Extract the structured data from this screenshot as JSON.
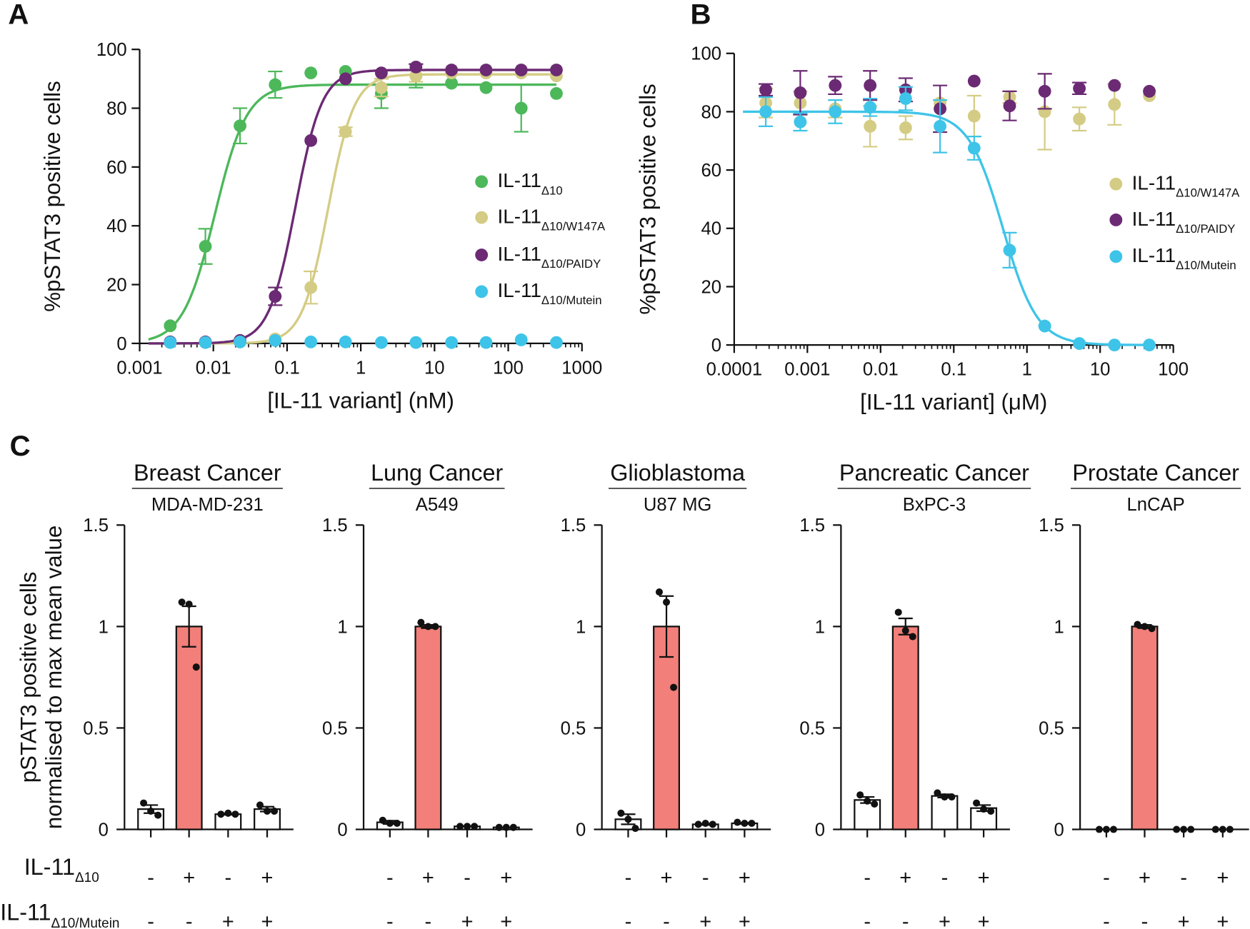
{
  "chart_data": [
    {
      "panel_label": "A",
      "type": "scatter",
      "xscale": "log",
      "xlabel": "[IL-11 variant] (nM)",
      "ylabel": "%pSTAT3 positive cells",
      "xlim": [
        0.001,
        1000
      ],
      "ylim": [
        0,
        100
      ],
      "xticks": [
        "0.001",
        "0.01",
        "0.1",
        "1",
        "10",
        "100",
        "1000"
      ],
      "yticks": [
        "0",
        "20",
        "40",
        "60",
        "80",
        "100"
      ],
      "legend_position": "right",
      "x": [
        0.0026,
        0.0078,
        0.023,
        0.069,
        0.21,
        0.62,
        1.9,
        5.6,
        17,
        50,
        150,
        450
      ],
      "series": [
        {
          "name": {
            "main": "IL-11",
            "sub": "Δ10"
          },
          "color": "#4cb85a",
          "y": [
            6,
            33,
            74,
            88,
            92,
            92.5,
            85,
            91,
            88.5,
            87,
            80,
            85
          ],
          "err": [
            0,
            6,
            6,
            4.5,
            0,
            0,
            5,
            4,
            0,
            0,
            8,
            0
          ]
        },
        {
          "name": {
            "main": "IL-11",
            "sub": "Δ10/W147A"
          },
          "color": "#d4cc84",
          "y": [
            0.3,
            0.3,
            0.5,
            1.5,
            19,
            72,
            87,
            91,
            92,
            92,
            92,
            91
          ],
          "err": [
            0,
            0,
            0,
            0,
            5.5,
            1.5,
            3,
            2,
            0,
            0,
            0,
            0
          ]
        },
        {
          "name": {
            "main": "IL-11",
            "sub": "Δ10/PAIDY"
          },
          "color": "#6b2a73",
          "y": [
            0.5,
            0.5,
            1,
            16,
            69,
            90,
            92,
            94,
            93,
            93,
            93,
            93
          ],
          "err": [
            0,
            0,
            0,
            3,
            0,
            0,
            0,
            1,
            0,
            0,
            0,
            0
          ]
        },
        {
          "name": {
            "main": "IL-11",
            "sub": "Δ10/Mutein"
          },
          "color": "#3ec4e8",
          "y": [
            0.3,
            0.3,
            0.5,
            1,
            0.5,
            0.5,
            0.3,
            0.3,
            0.3,
            0.3,
            1.2,
            0.3
          ],
          "err": [
            0,
            0,
            0,
            0,
            0,
            0,
            0,
            0,
            0,
            0,
            0,
            0
          ]
        }
      ]
    },
    {
      "panel_label": "B",
      "type": "scatter",
      "xscale": "log",
      "xlabel": "[IL-11 variant] (μM)",
      "ylabel": "%pSTAT3 positive cells",
      "xlim": [
        0.0001,
        100
      ],
      "ylim": [
        0,
        100
      ],
      "xticks": [
        "0.0001",
        "0.001",
        "0.01",
        "0.1",
        "1",
        "10",
        "100"
      ],
      "yticks": [
        "0",
        "20",
        "40",
        "60",
        "80",
        "100"
      ],
      "legend_position": "right",
      "x": [
        0.00027,
        0.0008,
        0.0024,
        0.0072,
        0.022,
        0.065,
        0.19,
        0.58,
        1.75,
        5.2,
        15.7,
        47
      ],
      "series": [
        {
          "name": {
            "main": "IL-11",
            "sub": "Δ10/W147A"
          },
          "color": "#d4cc84",
          "y": [
            83,
            83,
            81,
            75,
            74.5,
            83,
            78.5,
            85,
            80,
            77.5,
            82.5,
            85.5
          ],
          "err": [
            5,
            4,
            3,
            7,
            4,
            0,
            7,
            2,
            13,
            4,
            7,
            0
          ]
        },
        {
          "name": {
            "main": "IL-11",
            "sub": "Δ10/PAIDY"
          },
          "color": "#6b2a73",
          "y": [
            87.5,
            86.5,
            89,
            89,
            87.5,
            81,
            90.5,
            82,
            87,
            88,
            89,
            87
          ],
          "err": [
            2,
            7.5,
            3,
            5,
            4,
            8,
            0,
            5,
            6,
            2,
            0,
            0
          ]
        },
        {
          "name": {
            "main": "IL-11",
            "sub": "Δ10/Mutein"
          },
          "color": "#3ec4e8",
          "y": [
            80,
            76.5,
            80,
            81.5,
            84.5,
            75,
            67.5,
            32.5,
            6.5,
            0.5,
            0,
            0
          ],
          "err": [
            5,
            3,
            4,
            3,
            4,
            9,
            4,
            6,
            0,
            0,
            0,
            0
          ]
        }
      ]
    },
    {
      "panel_label": "C",
      "type": "bar",
      "ylabel": [
        "pSTAT3 positive cells",
        "normalised to max mean value"
      ],
      "ylim": [
        0,
        1.5
      ],
      "yticks": [
        "0",
        "0.5",
        "1",
        "1.5"
      ],
      "highlight_color": "#f27f79",
      "treatments": [
        {
          "label": {
            "main": "IL-11",
            "sub": "Δ10"
          },
          "signs": [
            "-",
            "+",
            "-",
            "+"
          ]
        },
        {
          "label": {
            "main": "IL-11",
            "sub": "Δ10/Mutein"
          },
          "signs": [
            "-",
            "-",
            "+",
            "+"
          ]
        }
      ],
      "subplots": [
        {
          "title": "Breast Cancer",
          "cell_line": "MDA-MD-231",
          "values": [
            0.1,
            1.0,
            0.075,
            0.1
          ],
          "sem": [
            0.02,
            0.1,
            0.003,
            0.012
          ],
          "points": [
            [
              0.13,
              0.09,
              0.07
            ],
            [
              1.12,
              1.11,
              0.8
            ],
            [
              0.075,
              0.08,
              0.075
            ],
            [
              0.12,
              0.09,
              0.09
            ]
          ]
        },
        {
          "title": "Lung Cancer",
          "cell_line": "A549",
          "values": [
            0.035,
            1.0,
            0.015,
            0.01
          ],
          "sem": [
            0.008,
            0.008,
            0,
            0
          ],
          "points": [
            [
              0.045,
              0.03,
              0.03
            ],
            [
              1.02,
              1.0,
              1.0
            ],
            [
              0.015,
              0.015,
              0.015
            ],
            [
              0.01,
              0.01,
              0.01
            ]
          ]
        },
        {
          "title": "Glioblastoma",
          "cell_line": "U87 MG",
          "values": [
            0.05,
            1.0,
            0.025,
            0.03
          ],
          "sem": [
            0.025,
            0.15,
            0.003,
            0.003
          ],
          "points": [
            [
              0.08,
              0.05,
              0.005
            ],
            [
              1.17,
              1.12,
              0.7
            ],
            [
              0.025,
              0.03,
              0.025
            ],
            [
              0.035,
              0.03,
              0.03
            ]
          ]
        },
        {
          "title": "Pancreatic Cancer",
          "cell_line": "BxPC-3",
          "values": [
            0.145,
            1.0,
            0.165,
            0.105
          ],
          "sem": [
            0.015,
            0.04,
            0.008,
            0.015
          ],
          "points": [
            [
              0.17,
              0.14,
              0.125
            ],
            [
              1.07,
              0.98,
              0.95
            ],
            [
              0.18,
              0.16,
              0.16
            ],
            [
              0.13,
              0.1,
              0.09
            ]
          ]
        },
        {
          "title": "Prostate Cancer",
          "cell_line": "LnCAP",
          "values": [
            0,
            1.0,
            0,
            0
          ],
          "sem": [
            0,
            0.008,
            0,
            0
          ],
          "points": [
            [
              0,
              0,
              0
            ],
            [
              1.01,
              1.0,
              0.99
            ],
            [
              0,
              0,
              0
            ],
            [
              0,
              0,
              0
            ]
          ]
        }
      ]
    }
  ]
}
